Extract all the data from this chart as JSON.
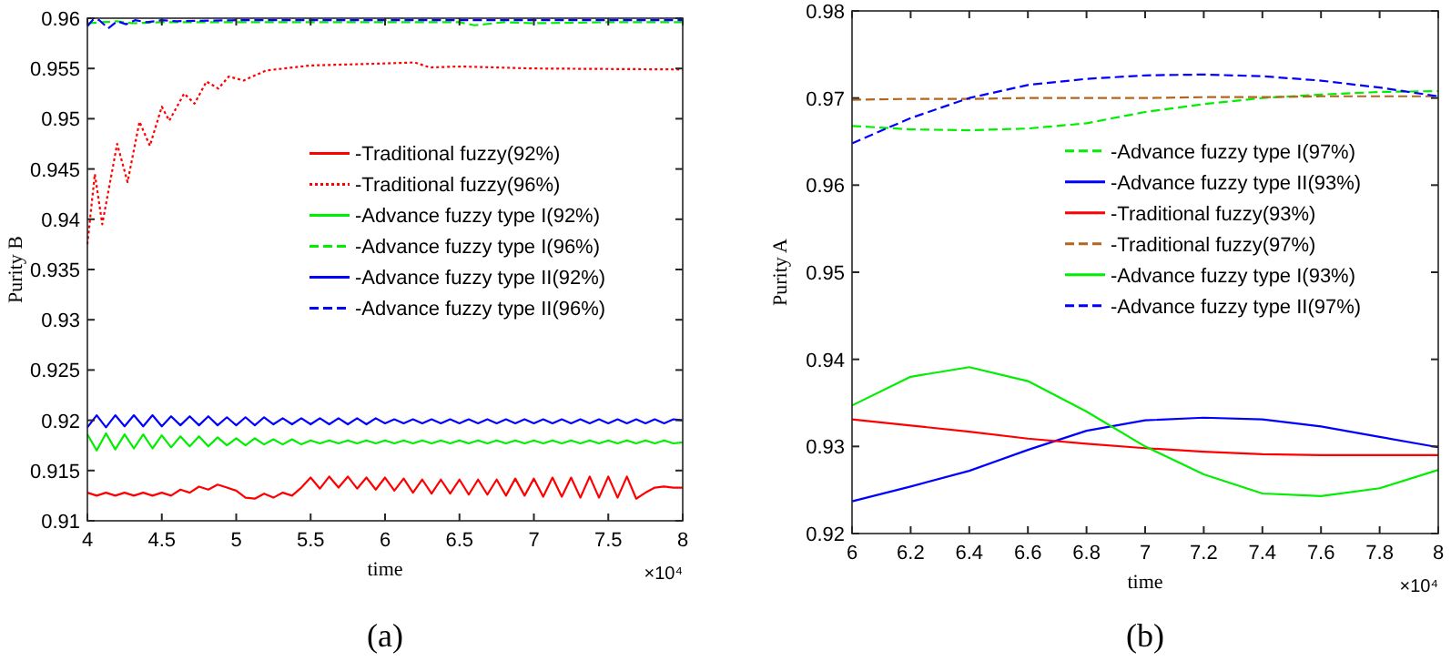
{
  "chart_data": [
    {
      "type": "line",
      "xlabel": "time",
      "ylabel": "Purity B",
      "xlim": [
        4,
        8
      ],
      "ylim": [
        0.91,
        0.96
      ],
      "xticks": [
        4,
        4.5,
        5,
        5.5,
        6,
        6.5,
        7,
        7.5,
        8
      ],
      "yticks": [
        0.91,
        0.915,
        0.92,
        0.925,
        0.93,
        0.935,
        0.94,
        0.945,
        0.95,
        0.955,
        0.96
      ],
      "legend": "right",
      "grid": false,
      "annotations": [
        "×10⁴",
        "(a)"
      ],
      "x": [
        4,
        4.0625,
        4.125,
        4.1875,
        4.25,
        4.3125,
        4.375,
        4.4375,
        4.5,
        4.5625,
        4.625,
        4.6875,
        4.75,
        4.8125,
        4.875,
        4.9375,
        5,
        5.0625,
        5.125,
        5.1875,
        5.25,
        5.3125,
        5.375,
        5.4375,
        5.5,
        5.5625,
        5.625,
        5.6875,
        5.75,
        5.8125,
        5.875,
        5.9375,
        6,
        6.0625,
        6.125,
        6.1875,
        6.25,
        6.3125,
        6.375,
        6.4375,
        6.5,
        6.5625,
        6.625,
        6.6875,
        6.75,
        6.8125,
        6.875,
        6.9375,
        7,
        7.0625,
        7.125,
        7.1875,
        7.25,
        7.3125,
        7.375,
        7.4375,
        7.5,
        7.5625,
        7.625,
        7.6875,
        7.75,
        7.8125,
        7.875,
        7.9375,
        8
      ],
      "series": [
        {
          "name": "-Traditional fuzzy(92%)",
          "color": "#ff0000",
          "line_style": "solid",
          "values": [
            0.9128,
            0.9125,
            0.9128,
            0.9125,
            0.9128,
            0.9125,
            0.9128,
            0.9125,
            0.9128,
            0.9125,
            0.9131,
            0.9128,
            0.9134,
            0.9131,
            0.9136,
            0.9133,
            0.913,
            0.9123,
            0.9122,
            0.9127,
            0.9123,
            0.9128,
            0.9125,
            0.9133,
            0.9143,
            0.9132,
            0.9144,
            0.9133,
            0.9144,
            0.9132,
            0.9143,
            0.9131,
            0.9143,
            0.913,
            0.9142,
            0.9128,
            0.9141,
            0.9127,
            0.9141,
            0.9127,
            0.9141,
            0.9126,
            0.9141,
            0.9126,
            0.9141,
            0.9125,
            0.9142,
            0.9125,
            0.9142,
            0.9124,
            0.9143,
            0.9124,
            0.9143,
            0.9123,
            0.9144,
            0.9123,
            0.9144,
            0.9123,
            0.9144,
            0.9122,
            0.9128,
            0.9133,
            0.9134,
            0.9133,
            0.9133
          ]
        },
        {
          "name": "-Traditional fuzzy(96%)",
          "color": "#ff0000",
          "line_style": "dotted",
          "x": [
            4,
            4.05,
            4.1,
            4.2,
            4.27,
            4.35,
            4.42,
            4.5,
            4.55,
            4.65,
            4.72,
            4.8,
            4.88,
            4.95,
            5.05,
            5.2,
            5.5,
            6,
            6.2,
            6.3,
            6.5,
            7,
            8
          ],
          "values": [
            0.9375,
            0.9445,
            0.9395,
            0.9475,
            0.9437,
            0.9497,
            0.9473,
            0.9512,
            0.9498,
            0.9525,
            0.9515,
            0.9537,
            0.953,
            0.9542,
            0.9538,
            0.9548,
            0.9553,
            0.9555,
            0.9556,
            0.9551,
            0.9552,
            0.955,
            0.9549
          ]
        },
        {
          "name": "-Advance fuzzy type I(92%)",
          "color": "#00ee00",
          "line_style": "solid",
          "values": [
            0.9186,
            0.917,
            0.9187,
            0.9171,
            0.9186,
            0.9172,
            0.9186,
            0.9172,
            0.9185,
            0.9173,
            0.9184,
            0.9174,
            0.9184,
            0.9174,
            0.9183,
            0.9175,
            0.9182,
            0.9175,
            0.9182,
            0.9176,
            0.9181,
            0.9176,
            0.9181,
            0.9176,
            0.918,
            0.9177,
            0.918,
            0.9177,
            0.918,
            0.9177,
            0.918,
            0.9177,
            0.918,
            0.9177,
            0.918,
            0.9177,
            0.918,
            0.9177,
            0.918,
            0.9177,
            0.918,
            0.9177,
            0.918,
            0.9177,
            0.918,
            0.9177,
            0.918,
            0.9177,
            0.918,
            0.9177,
            0.918,
            0.9177,
            0.918,
            0.9177,
            0.918,
            0.9177,
            0.918,
            0.9177,
            0.918,
            0.9177,
            0.918,
            0.9177,
            0.918,
            0.9177,
            0.9178
          ]
        },
        {
          "name": "-Advance fuzzy type I(96%)",
          "color": "#00ee00",
          "line_style": "dashed",
          "x": [
            4,
            4.1,
            4.2,
            4.3,
            4.5,
            5,
            5.5,
            6,
            6.5,
            6.6,
            6.8,
            7,
            7.5,
            8
          ],
          "values": [
            0.9595,
            0.9596,
            0.9597,
            0.9595,
            0.9596,
            0.9596,
            0.9596,
            0.9596,
            0.9596,
            0.9593,
            0.9596,
            0.9595,
            0.9596,
            0.9596
          ]
        },
        {
          "name": "-Advance fuzzy type II(92%)",
          "color": "#0000ff",
          "line_style": "solid",
          "values": [
            0.9193,
            0.9205,
            0.9193,
            0.9205,
            0.9194,
            0.9205,
            0.9194,
            0.9205,
            0.9194,
            0.9204,
            0.9195,
            0.9204,
            0.9195,
            0.9204,
            0.9195,
            0.9203,
            0.9195,
            0.9203,
            0.9195,
            0.9203,
            0.9196,
            0.9202,
            0.9196,
            0.9202,
            0.9196,
            0.9202,
            0.9196,
            0.9202,
            0.9196,
            0.9202,
            0.9196,
            0.9202,
            0.9197,
            0.9201,
            0.9197,
            0.9201,
            0.9197,
            0.9201,
            0.9197,
            0.9201,
            0.9197,
            0.9201,
            0.9197,
            0.9201,
            0.9197,
            0.9201,
            0.9197,
            0.9201,
            0.9197,
            0.9201,
            0.9197,
            0.9201,
            0.9197,
            0.9201,
            0.9197,
            0.9201,
            0.9197,
            0.9201,
            0.9197,
            0.9201,
            0.9197,
            0.9201,
            0.9197,
            0.9201,
            0.92
          ]
        },
        {
          "name": "-Advance fuzzy type II(96%)",
          "color": "#0000ff",
          "line_style": "dashed",
          "x": [
            4,
            4.04,
            4.08,
            4.14,
            4.2,
            4.26,
            4.32,
            4.4,
            4.5,
            4.6,
            5,
            5.5,
            6,
            6.5,
            7,
            7.5,
            8
          ],
          "values": [
            0.9592,
            0.9599,
            0.9598,
            0.959,
            0.9597,
            0.9594,
            0.9598,
            0.9596,
            0.9598,
            0.9597,
            0.9598,
            0.9598,
            0.9598,
            0.9598,
            0.9598,
            0.9598,
            0.9598
          ]
        }
      ]
    },
    {
      "type": "line",
      "xlabel": "time",
      "ylabel": "Purity A",
      "xlim": [
        6,
        8
      ],
      "ylim": [
        0.92,
        0.98
      ],
      "xticks": [
        6,
        6.2,
        6.4,
        6.6,
        6.8,
        7,
        7.2,
        7.4,
        7.6,
        7.8,
        8
      ],
      "yticks": [
        0.92,
        0.93,
        0.94,
        0.95,
        0.96,
        0.97,
        0.98
      ],
      "legend": "right",
      "grid": false,
      "annotations": [
        "×10⁴",
        "(b)"
      ],
      "x": [
        6,
        6.2,
        6.4,
        6.6,
        6.8,
        7,
        7.2,
        7.4,
        7.6,
        7.8,
        8
      ],
      "series": [
        {
          "name": "-Advance fuzzy type I(97%)",
          "color": "#00ee00",
          "line_style": "dashed",
          "values": [
            0.9668,
            0.9664,
            0.9663,
            0.9665,
            0.9671,
            0.9684,
            0.9693,
            0.97,
            0.9704,
            0.9707,
            0.9708
          ]
        },
        {
          "name": "-Advance fuzzy type II(93%)",
          "color": "#0000ff",
          "line_style": "solid",
          "values": [
            0.9237,
            0.9254,
            0.9272,
            0.9296,
            0.9318,
            0.933,
            0.9333,
            0.9331,
            0.9323,
            0.9311,
            0.9299
          ]
        },
        {
          "name": "-Traditional fuzzy(93%)",
          "color": "#ff0000",
          "line_style": "solid",
          "values": [
            0.9331,
            0.9324,
            0.9317,
            0.9309,
            0.9303,
            0.9298,
            0.9294,
            0.9291,
            0.929,
            0.929,
            0.929
          ]
        },
        {
          "name": "-Traditional fuzzy(97%)",
          "color": "#b5651d",
          "line_style": "dashed",
          "values": [
            0.9698,
            0.9699,
            0.9699,
            0.97,
            0.97,
            0.97,
            0.9701,
            0.9701,
            0.9702,
            0.9702,
            0.9702
          ]
        },
        {
          "name": "-Advance fuzzy type I(93%)",
          "color": "#00ee00",
          "line_style": "solid",
          "values": [
            0.9347,
            0.938,
            0.9391,
            0.9375,
            0.934,
            0.93,
            0.9268,
            0.9246,
            0.9243,
            0.9252,
            0.9273
          ]
        },
        {
          "name": "-Advance fuzzy type II(97%)",
          "color": "#0000ff",
          "line_style": "dashed",
          "values": [
            0.9648,
            0.9677,
            0.97,
            0.9715,
            0.9722,
            0.9726,
            0.9727,
            0.9725,
            0.972,
            0.9712,
            0.9702
          ]
        }
      ]
    }
  ]
}
